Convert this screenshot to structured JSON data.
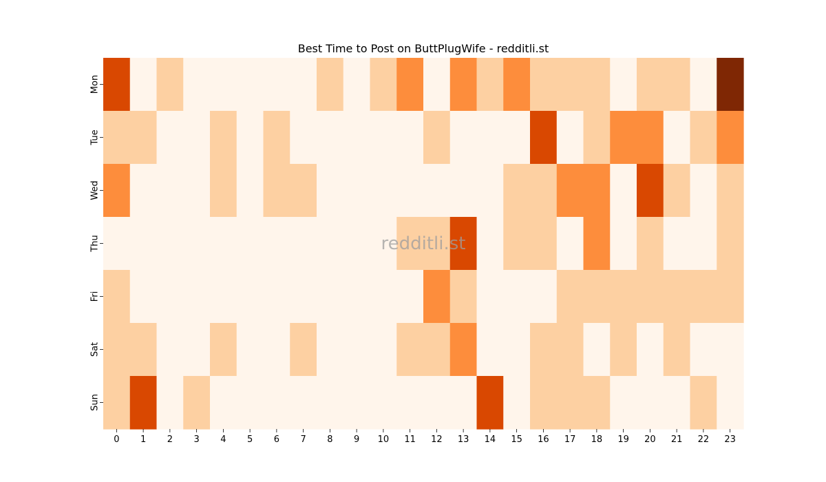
{
  "chart_data": {
    "type": "heatmap",
    "title": "Best Time to Post on ButtPlugWife - redditli.st",
    "xlabel": "",
    "ylabel": "",
    "x_categories": [
      "0",
      "1",
      "2",
      "3",
      "4",
      "5",
      "6",
      "7",
      "8",
      "9",
      "10",
      "11",
      "12",
      "13",
      "14",
      "15",
      "16",
      "17",
      "18",
      "19",
      "20",
      "21",
      "22",
      "23"
    ],
    "y_categories": [
      "Mon",
      "Tue",
      "Wed",
      "Thu",
      "Fri",
      "Sat",
      "Sun"
    ],
    "values": [
      [
        3,
        0,
        1,
        0,
        0,
        0,
        0,
        0,
        1,
        0,
        1,
        2,
        0,
        2,
        1,
        2,
        1,
        1,
        1,
        0,
        1,
        1,
        0,
        4
      ],
      [
        1,
        1,
        0,
        0,
        1,
        0,
        1,
        0,
        0,
        0,
        0,
        0,
        1,
        0,
        0,
        0,
        3,
        0,
        1,
        2,
        2,
        0,
        1,
        2
      ],
      [
        2,
        0,
        0,
        0,
        1,
        0,
        1,
        1,
        0,
        0,
        0,
        0,
        0,
        0,
        0,
        1,
        1,
        2,
        2,
        0,
        3,
        1,
        0,
        1
      ],
      [
        0,
        0,
        0,
        0,
        0,
        0,
        0,
        0,
        0,
        0,
        0,
        1,
        1,
        3,
        0,
        1,
        1,
        0,
        2,
        0,
        1,
        0,
        0,
        1
      ],
      [
        1,
        0,
        0,
        0,
        0,
        0,
        0,
        0,
        0,
        0,
        0,
        0,
        2,
        1,
        0,
        0,
        0,
        1,
        1,
        1,
        1,
        1,
        1,
        1
      ],
      [
        1,
        1,
        0,
        0,
        1,
        0,
        0,
        1,
        0,
        0,
        0,
        1,
        1,
        2,
        0,
        0,
        1,
        1,
        0,
        1,
        0,
        1,
        0,
        0
      ],
      [
        1,
        3,
        0,
        1,
        0,
        0,
        0,
        0,
        0,
        0,
        0,
        0,
        0,
        0,
        3,
        0,
        1,
        1,
        1,
        0,
        0,
        0,
        1,
        0
      ]
    ],
    "colorscale": [
      "#fff5eb",
      "#fdd0a2",
      "#fd8d3c",
      "#d94801",
      "#7f2704"
    ],
    "watermark": "redditli.st"
  }
}
